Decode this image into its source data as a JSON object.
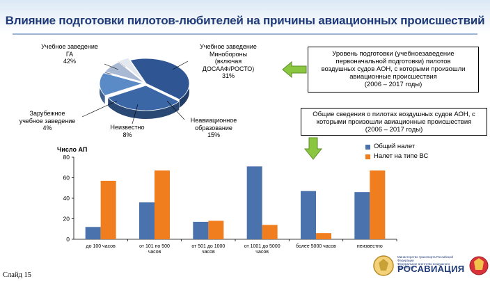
{
  "title": "Влияние подготовки пилотов-любителей на причины авиационных происшествий",
  "colors": {
    "title": "#1f3a78",
    "series_total": "#4a72ad",
    "series_type": "#f07d1e",
    "arrow_green": "#8ac63f",
    "pie_ga": "#2f5693",
    "pie_mil": "#3b67a6",
    "pie_nonav": "#5b8bc6",
    "pie_unknown": "#a9b9d3",
    "pie_foreign": "#e3e7ee"
  },
  "pie": {
    "slices": [
      {
        "label_line1": "Учебное заведение",
        "label_line2": "ГА",
        "label_line3": "42%",
        "value": 42
      },
      {
        "label_line1": "Учебное заведение",
        "label_line2": "Минобороны",
        "label_line3": "(включая",
        "label_line4": "ДОСААФ/РОСТО)",
        "label_line5": "31%",
        "value": 31
      },
      {
        "label_line1": "Неавиационное",
        "label_line2": "образование",
        "label_line3": "15%",
        "value": 15
      },
      {
        "label_line1": "Неизвестно",
        "label_line2": "8%",
        "value": 8
      },
      {
        "label_line1": "Зарубежное",
        "label_line2": "учебное заведение",
        "label_line3": "4%",
        "value": 4
      }
    ]
  },
  "box_top": {
    "line1": "Уровень подготовки (учебноезаведение",
    "line2": "первоначальной подготовки)  пилотов",
    "line3": "воздушных  судов АОН, с которыми произошли",
    "line4": "авиационные происшествия",
    "line5": "(2006 – 2017 годы)"
  },
  "box_bottom": {
    "line1": "Общие сведения о пилотах воздушных судов АОН, с",
    "line2": "которыми произошли авиационные происшествия",
    "line3": "(2006 – 2017 годы)"
  },
  "chart_data": {
    "type": "bar",
    "ylabel": "Число АП",
    "ylim": [
      0,
      80
    ],
    "yticks": [
      "0",
      "20",
      "40",
      "60",
      "80"
    ],
    "categories": [
      "до 100 часов",
      "от 101  по 500 часов",
      "от 501  до 1000 часов",
      "от 1001  до 5000 часов",
      "более 5000 часов",
      "неизвестно"
    ],
    "series": [
      {
        "name": "Общий налет",
        "values": [
          12,
          36,
          17,
          71,
          47,
          46
        ]
      },
      {
        "name": "Налет на типе ВС",
        "values": [
          57,
          67,
          18,
          14,
          6,
          67
        ]
      }
    ],
    "legend_position": "top-right",
    "grid": false
  },
  "slide_number": "Слайд 15",
  "logo": {
    "line1": "Министерство транспорта Российской Федерации",
    "line2": "Федеральное агентство воздушного транспорта",
    "brand": "РОСАВИАЦИЯ"
  }
}
